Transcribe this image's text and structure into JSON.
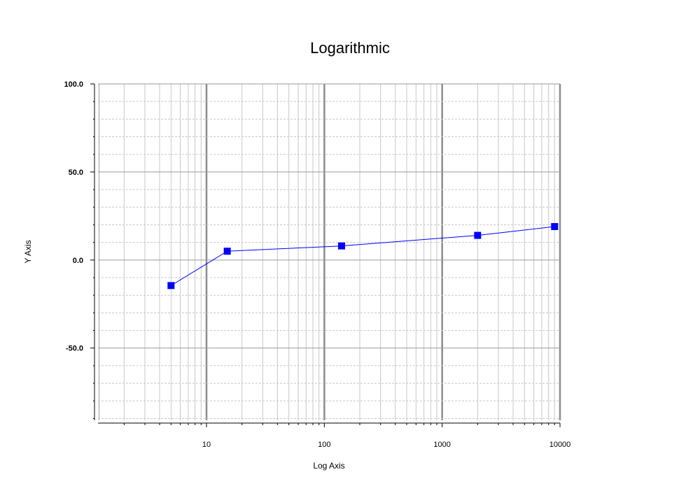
{
  "chart_data": {
    "type": "line",
    "title": "Logarithmic",
    "xlabel": "Log Axis",
    "ylabel": "Y Axis",
    "x_scale": "log",
    "xlim": [
      1.2,
      10000
    ],
    "ylim": [
      -91,
      100
    ],
    "grid": true,
    "legend": "none",
    "x_ticks": [
      {
        "value": 10,
        "label": "10"
      },
      {
        "value": 100,
        "label": "100"
      },
      {
        "value": 1000,
        "label": "1000"
      },
      {
        "value": 10000,
        "label": "10000"
      }
    ],
    "y_ticks": [
      {
        "value": 100,
        "label": "100.0"
      },
      {
        "value": 50,
        "label": "50.0"
      },
      {
        "value": 0,
        "label": "0.0"
      },
      {
        "value": -50,
        "label": "-50.0"
      }
    ],
    "series": [
      {
        "x": [
          5,
          15,
          140,
          2000,
          9000
        ],
        "y": [
          -14.5,
          5,
          8,
          14,
          19
        ],
        "color": "#0000ff",
        "line_color": "#0000ff",
        "marker": "square"
      }
    ]
  }
}
